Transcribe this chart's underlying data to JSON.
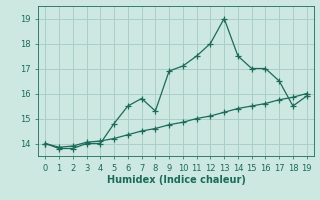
{
  "xlabel": "Humidex (Indice chaleur)",
  "xlim": [
    -0.5,
    19.5
  ],
  "ylim": [
    13.5,
    19.5
  ],
  "xticks": [
    0,
    1,
    2,
    3,
    4,
    5,
    6,
    7,
    8,
    9,
    10,
    11,
    12,
    13,
    14,
    15,
    16,
    17,
    18,
    19
  ],
  "yticks": [
    14,
    15,
    16,
    17,
    18,
    19
  ],
  "background_color": "#cce8e0",
  "grid_color": "#a8cfc8",
  "line_color": "#1a6b5a",
  "line1_x": [
    0,
    1,
    2,
    3,
    4,
    5,
    6,
    7,
    8,
    9,
    10,
    11,
    12,
    13,
    14,
    15,
    16,
    17,
    18,
    19
  ],
  "line1_y": [
    14.0,
    13.8,
    13.8,
    14.0,
    14.0,
    14.8,
    15.5,
    15.8,
    15.3,
    16.9,
    17.1,
    17.5,
    18.0,
    19.0,
    17.5,
    17.0,
    17.0,
    16.5,
    15.5,
    15.9
  ],
  "line2_x": [
    0,
    1,
    2,
    3,
    4,
    5,
    6,
    7,
    8,
    9,
    10,
    11,
    12,
    13,
    14,
    15,
    16,
    17,
    18,
    19
  ],
  "line2_y": [
    14.0,
    13.85,
    13.9,
    14.05,
    14.1,
    14.2,
    14.35,
    14.5,
    14.6,
    14.75,
    14.85,
    15.0,
    15.1,
    15.25,
    15.4,
    15.5,
    15.6,
    15.75,
    15.85,
    16.0
  ],
  "marker": "+",
  "markersize": 4,
  "linewidth": 0.9,
  "tick_fontsize": 6,
  "xlabel_fontsize": 7
}
